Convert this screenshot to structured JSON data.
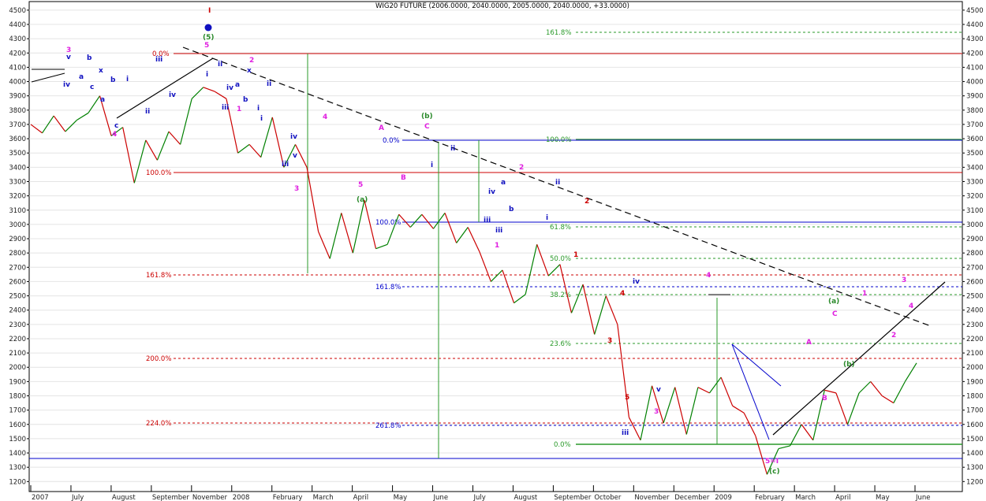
{
  "chart_data": {
    "type": "line",
    "title": "WIG20 FUTURE (2006.0000, 2040.0000, 2005.0000, 2040.0000, +33.0000)",
    "ylim": [
      1130,
      4560
    ],
    "y_ticks": [
      1200,
      1300,
      1400,
      1500,
      1600,
      1700,
      1800,
      1900,
      2000,
      2100,
      2200,
      2300,
      2400,
      2500,
      2600,
      2700,
      2800,
      2900,
      3000,
      3100,
      3200,
      3300,
      3400,
      3500,
      3600,
      3700,
      3800,
      3900,
      4000,
      4100,
      4200,
      4300,
      4400,
      4500
    ],
    "x_labels": [
      "2007",
      "July",
      "August",
      "September",
      "November",
      "2008",
      "February",
      "March",
      "April",
      "May",
      "June",
      "July",
      "August",
      "September",
      "October",
      "November",
      "December",
      "2009",
      "February",
      "March",
      "April",
      "May",
      "June"
    ],
    "grid": true,
    "price_path": [
      3700,
      3640,
      3760,
      3650,
      3730,
      3780,
      3900,
      3620,
      3680,
      3290,
      3590,
      3450,
      3650,
      3560,
      3880,
      3960,
      3930,
      3880,
      3500,
      3560,
      3470,
      3750,
      3400,
      3560,
      3400,
      2950,
      2760,
      3080,
      2800,
      3170,
      2830,
      2860,
      3070,
      2980,
      3070,
      2970,
      3080,
      2870,
      2980,
      2810,
      2600,
      2680,
      2450,
      2510,
      2860,
      2640,
      2720,
      2380,
      2580,
      2230,
      2500,
      2300,
      1650,
      1490,
      1870,
      1610,
      1860,
      1530,
      1860,
      1820,
      1930,
      1730,
      1680,
      1520,
      1250,
      1430,
      1450,
      1600,
      1490,
      1840,
      1820,
      1600,
      1820,
      1900,
      1800,
      1750,
      1900,
      2030
    ]
  },
  "fib_labels": {
    "red": [
      "0.0%",
      "100.0%",
      "161.8%",
      "200.0%",
      "224.0%"
    ],
    "blue": [
      "0.0%",
      "100.0%",
      "161.8%",
      "261.8%"
    ],
    "green": [
      "161.8%",
      "100.0%",
      "61.8%",
      "50.0%",
      "38.2%",
      "23.6%",
      "0.0%"
    ]
  },
  "wave_labels": {
    "black": [
      "I"
    ],
    "blue": [
      "v",
      "iv",
      "b",
      "a",
      "c",
      "b",
      "x",
      "c",
      "a",
      "i",
      "ii",
      "iii",
      "iv",
      "i",
      "ii",
      "iii",
      "iv",
      "a",
      "b",
      "i",
      "ii",
      "iii",
      "iv",
      "v",
      "iii",
      "v",
      "i",
      "ii",
      "iii",
      "a",
      "b",
      "iv",
      "v",
      "ii",
      "i",
      "iv",
      "v",
      "iii"
    ],
    "magenta": [
      "3",
      "4",
      "0.0%",
      "5",
      "1",
      "2",
      "3",
      "4",
      "5",
      "A",
      "B",
      "C",
      "1",
      "2",
      "3",
      "4",
      "5=I",
      "A",
      "B",
      "C",
      "1",
      "2",
      "3",
      "4"
    ],
    "green": [
      "(5)",
      "(a)",
      "(b)",
      "(a)",
      "(b)",
      "(c)"
    ],
    "red": [
      "1",
      "2",
      "3",
      "4",
      "5"
    ]
  },
  "colors": {
    "price_up": "#008000",
    "price_down": "#cc0000",
    "fib_red": "#cc0000",
    "fib_blue": "#0000cc",
    "fib_green": "#2a9a2a",
    "wave_blue": "#1010c0",
    "wave_magenta": "#e020e0",
    "wave_green": "#2a8a2a"
  }
}
